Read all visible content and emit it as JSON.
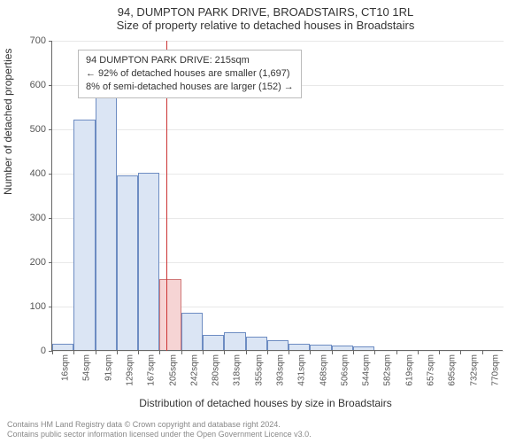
{
  "title": "94, DUMPTON PARK DRIVE, BROADSTAIRS, CT10 1RL",
  "subtitle": "Size of property relative to detached houses in Broadstairs",
  "y_axis_label": "Number of detached properties",
  "x_axis_label": "Distribution of detached houses by size in Broadstairs",
  "chart": {
    "type": "histogram",
    "ylim": [
      0,
      700
    ],
    "ytick_step": 100,
    "y_ticks": [
      0,
      100,
      200,
      300,
      400,
      500,
      600,
      700
    ],
    "x_tick_labels": [
      "16sqm",
      "54sqm",
      "91sqm",
      "129sqm",
      "167sqm",
      "205sqm",
      "242sqm",
      "280sqm",
      "318sqm",
      "355sqm",
      "393sqm",
      "431sqm",
      "468sqm",
      "506sqm",
      "544sqm",
      "582sqm",
      "619sqm",
      "657sqm",
      "695sqm",
      "732sqm",
      "770sqm"
    ],
    "bar_values": [
      14,
      520,
      580,
      395,
      400,
      160,
      85,
      35,
      40,
      30,
      22,
      15,
      12,
      10,
      8,
      0,
      0,
      0,
      0,
      0,
      0
    ],
    "bar_fill": "#dbe5f4",
    "bar_stroke": "#6d8cc2",
    "highlight_bar_index": 5,
    "highlight_bar_fill": "#f6d4d4",
    "highlight_bar_stroke": "#d07878",
    "marker_line_color": "#cc3333",
    "marker_line_position": 5.3,
    "background_color": "#ffffff",
    "grid_color": "#e8e8e8",
    "axis_color": "#666666",
    "tick_fontsize": 11,
    "x_tick_fontsize": 10,
    "bar_width_ratio": 1.0
  },
  "annotation": {
    "line1": "94 DUMPTON PARK DRIVE: 215sqm",
    "line2": "← 92% of detached houses are smaller (1,697)",
    "line3": "8% of semi-detached houses are larger (152) →"
  },
  "footer": {
    "line1": "Contains HM Land Registry data © Crown copyright and database right 2024.",
    "line2": "Contains public sector information licensed under the Open Government Licence v3.0."
  }
}
